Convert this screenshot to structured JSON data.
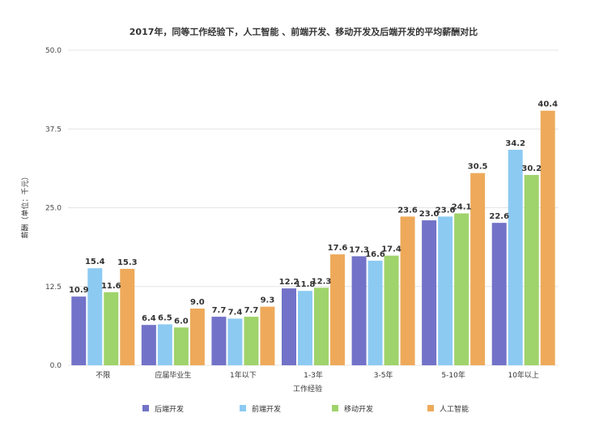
{
  "chart_data": {
    "type": "bar",
    "title": "2017年，同等工作经验下，人工智能 、前端开发、移动开发及后端开发的平均薪酬对比",
    "xlabel": "工作经验",
    "ylabel": "薪酬（单位：千元）",
    "ylim": [
      0,
      50
    ],
    "yticks": [
      "0.0",
      "12.5",
      "25.0",
      "37.5",
      "50.0"
    ],
    "categories": [
      "不限",
      "应届毕业生",
      "1年以下",
      "1-3年",
      "3-5年",
      "5-10年",
      "10年以上"
    ],
    "series": [
      {
        "name": "后端开发",
        "color": "#7272c8",
        "values": [
          10.9,
          6.4,
          7.7,
          12.2,
          17.3,
          23.0,
          22.6
        ]
      },
      {
        "name": "前端开发",
        "color": "#8ccaf2",
        "values": [
          15.4,
          6.5,
          7.4,
          11.8,
          16.6,
          23.6,
          34.2
        ]
      },
      {
        "name": "移动开发",
        "color": "#9fd36b",
        "values": [
          11.6,
          6.0,
          7.7,
          12.3,
          17.4,
          24.1,
          30.2
        ]
      },
      {
        "name": "人工智能",
        "color": "#eeaa5a",
        "values": [
          15.3,
          9.0,
          9.3,
          17.6,
          23.6,
          30.5,
          40.4
        ]
      }
    ],
    "grid": true,
    "legend_position": "bottom"
  }
}
